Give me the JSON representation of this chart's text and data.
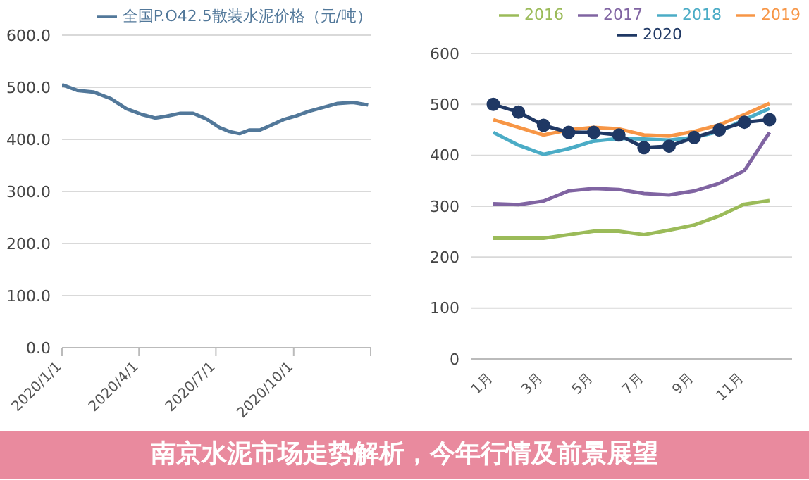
{
  "chart_data": [
    {
      "type": "line",
      "annotations": [
        "南京水泥市场走势解析，今年行情及前景展望"
      ],
      "x": [
        "2020-01-01",
        "2020-01-19",
        "2020-02-07",
        "2020-02-28",
        "2020-03-17",
        "2020-04-04",
        "2020-04-20",
        "2020-05-02",
        "2020-05-20",
        "2020-06-04",
        "2020-06-20",
        "2020-07-05",
        "2020-07-17",
        "2020-07-29",
        "2020-08-10",
        "2020-08-22",
        "2020-09-04",
        "2020-09-19",
        "2020-10-04",
        "2020-10-19",
        "2020-11-04",
        "2020-11-22",
        "2020-12-10",
        "2020-12-28"
      ],
      "series": [
        {
          "name": "全国P.O42.5散装水泥价格（元/吨）",
          "color": "#52789a",
          "values": [
            505,
            494,
            491,
            478,
            459,
            448,
            441,
            444,
            450,
            450,
            439,
            423,
            415,
            411,
            418,
            418,
            427,
            438,
            445,
            454,
            461,
            469,
            471,
            466
          ]
        }
      ],
      "xlim": [
        "2020-01-01",
        "2020-12-31"
      ],
      "xticks": [
        {
          "value": "2020-01-01",
          "label": "2020/1/1"
        },
        {
          "value": "2020-04-01",
          "label": "2020/4/1"
        },
        {
          "value": "2020-07-01",
          "label": "2020/7/1"
        },
        {
          "value": "2020-10-01",
          "label": "2020/10/1"
        },
        {
          "value": "2020-12-31",
          "label": null
        }
      ],
      "ylim": [
        0,
        600
      ],
      "yticks": [
        {
          "value": 0,
          "label": "0.0"
        },
        {
          "value": 100,
          "label": "100.0"
        },
        {
          "value": 200,
          "label": "200.0"
        },
        {
          "value": 300,
          "label": "300.0"
        },
        {
          "value": 400,
          "label": "400.0"
        },
        {
          "value": 500,
          "label": "500.0"
        },
        {
          "value": 600,
          "label": "600.0"
        }
      ],
      "grid": "y",
      "legend": "top",
      "marker": "none"
    },
    {
      "type": "line",
      "categories": [
        "1月",
        null,
        "3月",
        null,
        "5月",
        null,
        "7月",
        null,
        "9月",
        null,
        "11月",
        null
      ],
      "series": [
        {
          "name": "2016",
          "color": "#9bbb59",
          "values": [
            237,
            237,
            237,
            244,
            251,
            251,
            244,
            253,
            263,
            281,
            304,
            311
          ]
        },
        {
          "name": "2017",
          "color": "#8064a2",
          "values": [
            305,
            303,
            310,
            330,
            335,
            333,
            325,
            322,
            330,
            345,
            370,
            445
          ]
        },
        {
          "name": "2018",
          "color": "#4bacc6",
          "values": [
            445,
            420,
            402,
            413,
            428,
            433,
            432,
            430,
            435,
            447,
            470,
            492
          ]
        },
        {
          "name": "2019",
          "color": "#f79646",
          "values": [
            470,
            455,
            440,
            450,
            455,
            452,
            440,
            438,
            447,
            460,
            480,
            502
          ]
        },
        {
          "name": "2020",
          "color": "#1f3864",
          "marker": "circle",
          "values": [
            500,
            485,
            459,
            445,
            445,
            440,
            415,
            418,
            435,
            450,
            465,
            470
          ]
        }
      ],
      "ylim": [
        0,
        600
      ],
      "yticks": [
        0,
        100,
        200,
        300,
        400,
        500,
        600
      ],
      "grid": "y",
      "legend": "top",
      "marker": "none"
    }
  ]
}
